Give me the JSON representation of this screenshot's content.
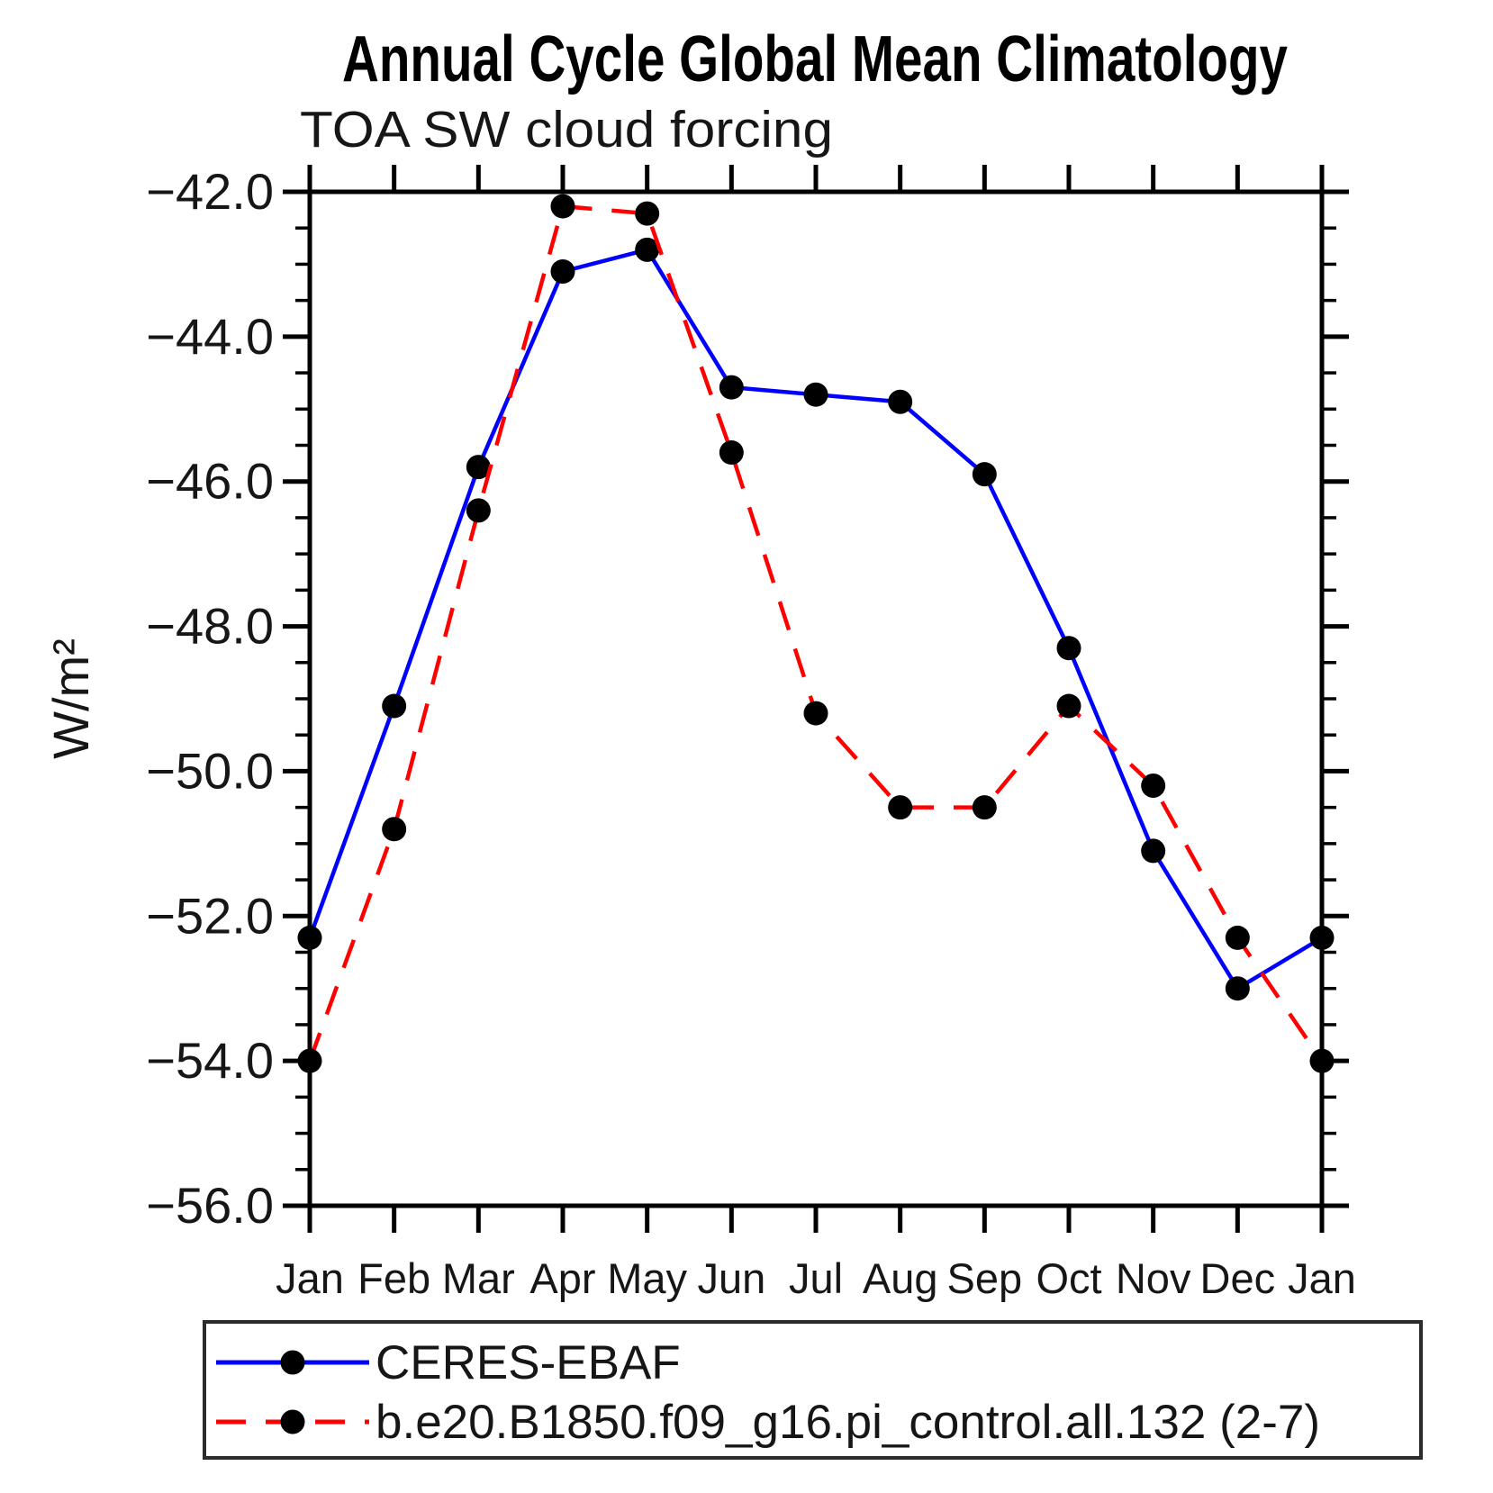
{
  "chart_data": {
    "type": "line",
    "title": "Annual Cycle Global Mean Climatology",
    "subtitle": "TOA SW cloud forcing",
    "ylabel": "W/m²",
    "xlabel": "",
    "categories": [
      "Jan",
      "Feb",
      "Mar",
      "Apr",
      "May",
      "Jun",
      "Jul",
      "Aug",
      "Sep",
      "Oct",
      "Nov",
      "Dec",
      "Jan"
    ],
    "series": [
      {
        "name": "CERES-EBAF",
        "color": "#0000ff",
        "line_style": "solid",
        "marker": "circle",
        "marker_color": "#000000",
        "values": [
          -52.3,
          -49.1,
          -45.8,
          -43.1,
          -42.8,
          -44.7,
          -44.8,
          -44.9,
          -45.9,
          -48.3,
          -51.1,
          -53.0,
          -52.3
        ]
      },
      {
        "name": "b.e20.B1850.f09_g16.pi_control.all.132 (2-7)",
        "color": "#ff0000",
        "line_style": "dashed",
        "marker": "circle",
        "marker_color": "#000000",
        "values": [
          -54.0,
          -50.8,
          -46.4,
          -42.2,
          -42.3,
          -45.6,
          -49.2,
          -50.5,
          -50.5,
          -49.1,
          -50.2,
          -52.3,
          -54.0
        ]
      }
    ],
    "ylim": [
      -56.0,
      -42.0
    ],
    "y_major_step": 2.0,
    "y_minor_step": 0.5,
    "y_tick_labels": [
      "−42.0",
      "−44.0",
      "−46.0",
      "−48.0",
      "−50.0",
      "−52.0",
      "−54.0",
      "−56.0"
    ],
    "grid": false,
    "legend_position": "bottom"
  }
}
